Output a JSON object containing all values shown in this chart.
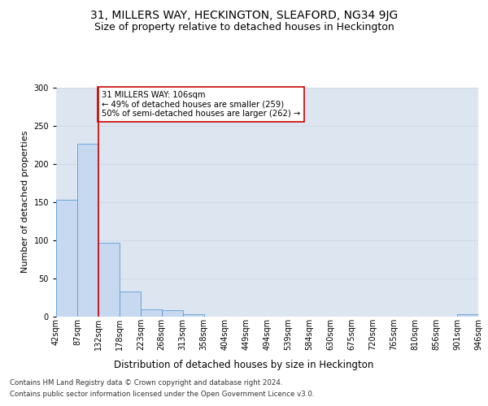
{
  "title": "31, MILLERS WAY, HECKINGTON, SLEAFORD, NG34 9JG",
  "subtitle": "Size of property relative to detached houses in Heckington",
  "xlabel": "Distribution of detached houses by size in Heckington",
  "ylabel": "Number of detached properties",
  "bar_values": [
    153,
    226,
    97,
    33,
    10,
    8,
    3,
    0,
    0,
    0,
    0,
    0,
    0,
    0,
    0,
    0,
    0,
    0,
    0,
    3
  ],
  "bar_labels": [
    "42sqm",
    "87sqm",
    "132sqm",
    "178sqm",
    "223sqm",
    "268sqm",
    "313sqm",
    "358sqm",
    "404sqm",
    "449sqm",
    "494sqm",
    "539sqm",
    "584sqm",
    "630sqm",
    "675sqm",
    "720sqm",
    "765sqm",
    "810sqm",
    "856sqm",
    "901sqm",
    "946sqm"
  ],
  "bar_color": "#c6d9f0",
  "bar_edge_color": "#5b9bd5",
  "grid_color": "#d0d8e8",
  "background_color": "#dde6f0",
  "property_line_x": 1.5,
  "property_line_color": "#cc0000",
  "annotation_text": "31 MILLERS WAY: 106sqm\n← 49% of detached houses are smaller (259)\n50% of semi-detached houses are larger (262) →",
  "annotation_box_color": "#ffffff",
  "annotation_box_edge": "#cc0000",
  "ylim": [
    0,
    300
  ],
  "yticks": [
    0,
    50,
    100,
    150,
    200,
    250,
    300
  ],
  "footer_line1": "Contains HM Land Registry data © Crown copyright and database right 2024.",
  "footer_line2": "Contains public sector information licensed under the Open Government Licence v3.0.",
  "title_fontsize": 10,
  "subtitle_fontsize": 9,
  "axis_label_fontsize": 8.5,
  "tick_fontsize": 7,
  "ylabel_fontsize": 8
}
